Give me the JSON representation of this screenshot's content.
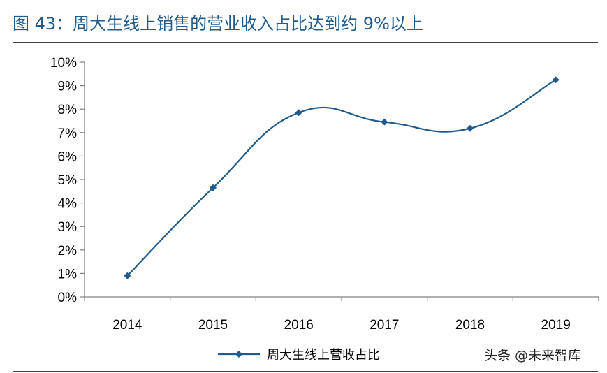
{
  "figure": {
    "title": "图 43：周大生线上销售的营业收入占比达到约 9%以上"
  },
  "watermark": "头条 @未来智库",
  "colors": {
    "title": "#1f5b8c",
    "series": "#1f5b8c",
    "axis": "#808080"
  },
  "chart_data": {
    "type": "line",
    "title": "",
    "xlabel": "",
    "ylabel": "",
    "x": [
      "2014",
      "2015",
      "2016",
      "2017",
      "2018",
      "2019"
    ],
    "series": [
      {
        "name": "周大生线上营收占比",
        "values": [
          0.9,
          4.65,
          7.85,
          7.45,
          7.18,
          9.25
        ],
        "marker": "diamond",
        "smooth": true
      }
    ],
    "ylim": [
      0,
      10
    ],
    "yticks": [
      "0%",
      "1%",
      "2%",
      "3%",
      "4%",
      "5%",
      "6%",
      "7%",
      "8%",
      "9%",
      "10%"
    ],
    "grid": false,
    "legend": "bottom-center"
  }
}
